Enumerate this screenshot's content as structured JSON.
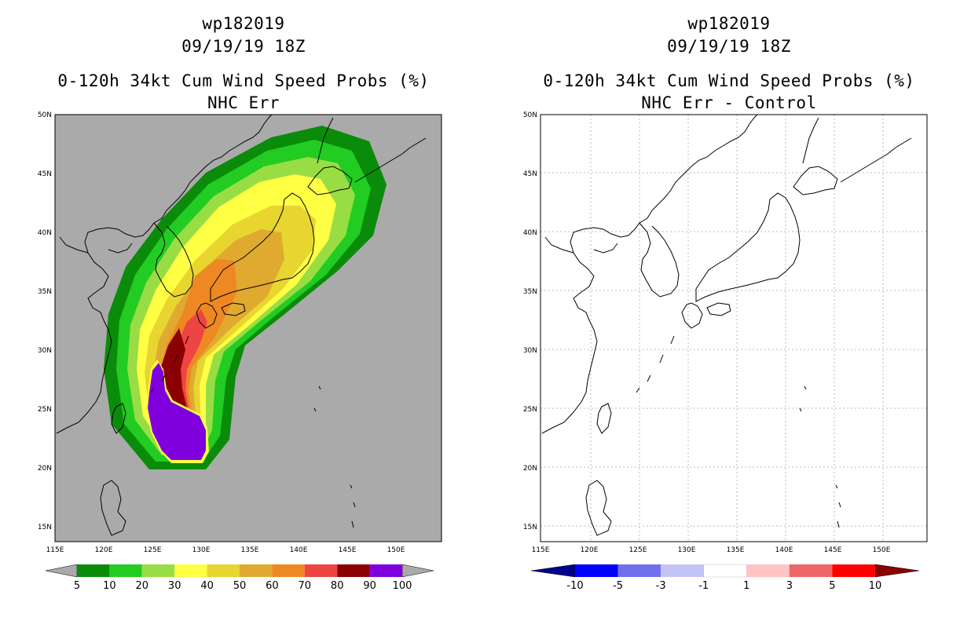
{
  "panels": {
    "left": {
      "storm_id": "wp182019",
      "datetime": "09/19/19 18Z",
      "product": "0-120h 34kt Cum Wind Speed Probs (%)",
      "subtitle": "NHC Err"
    },
    "right": {
      "storm_id": "wp182019",
      "datetime": "09/19/19 18Z",
      "product": "0-120h 34kt Cum Wind Speed Probs (%)",
      "subtitle": "NHC Err - Control"
    }
  },
  "axes": {
    "lat_labels": [
      "15N",
      "20N",
      "25N",
      "30N",
      "35N",
      "40N",
      "45N",
      "50N"
    ],
    "lon_labels": [
      "115E",
      "120E",
      "125E",
      "130E",
      "135E",
      "140E",
      "145E",
      "150E"
    ]
  },
  "colorbars": {
    "left": {
      "labels": [
        "5",
        "10",
        "20",
        "30",
        "40",
        "50",
        "60",
        "70",
        "80",
        "90",
        "100"
      ],
      "colors": [
        "#0a8c0a",
        "#22cc22",
        "#99dd44",
        "#ffff44",
        "#e8d530",
        "#e0aa30",
        "#ee8822",
        "#ee4444",
        "#8b0000",
        "#8000dd"
      ],
      "end_color": "#aaaaaa"
    },
    "right": {
      "labels": [
        "-10",
        "-5",
        "-3",
        "-1",
        "1",
        "3",
        "5",
        "10"
      ],
      "colors": [
        "#0000ff",
        "#7070ee",
        "#c4c4f4",
        "#ffffff",
        "#ffc4c4",
        "#ee6666",
        "#ff0000"
      ],
      "end_colors": [
        "#00008b",
        "#8b0000"
      ]
    }
  },
  "colors": {
    "ocean_left": "#aaaaaa",
    "ocean_right": "#ffffff",
    "coast": "#000000"
  }
}
